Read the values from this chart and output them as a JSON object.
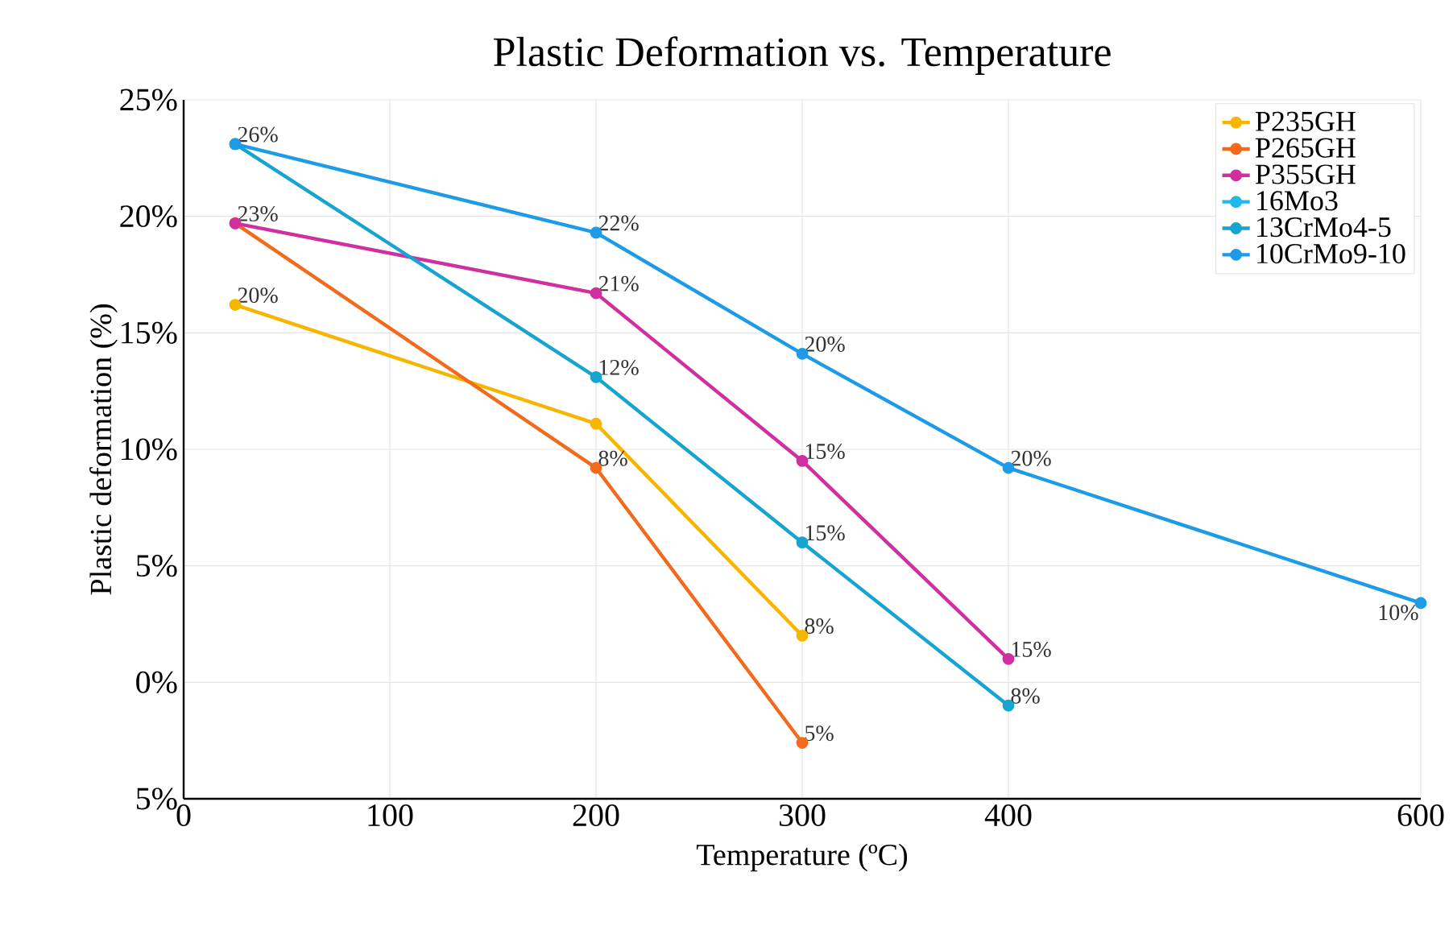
{
  "chart_data": {
    "type": "line",
    "title": "Plastic Deformation vs. Temperature",
    "xlabel": "Temperature (ºC)",
    "ylabel": "Plastic deformation (%)",
    "xlim": [
      0,
      600
    ],
    "ylim": [
      -5,
      25
    ],
    "xticks": [
      0,
      100,
      200,
      300,
      400,
      600
    ],
    "yticks": [
      {
        "value": -5,
        "label": "5%"
      },
      {
        "value": 0,
        "label": "0%"
      },
      {
        "value": 5,
        "label": "5%"
      },
      {
        "value": 10,
        "label": "10%"
      },
      {
        "value": 15,
        "label": "15%"
      },
      {
        "value": 20,
        "label": "20%"
      },
      {
        "value": 25,
        "label": "25%"
      }
    ],
    "grid": true,
    "legend": "top right",
    "marker": "circle",
    "line_style": "solid",
    "series": [
      {
        "name": "P235GH",
        "color": "#f7b500",
        "x": [
          25,
          200,
          300
        ],
        "values": [
          16.2,
          11.1,
          2.0
        ]
      },
      {
        "name": "P265GH",
        "color": "#f26b1d",
        "x": [
          25,
          200,
          300
        ],
        "values": [
          19.7,
          9.2,
          -2.6
        ]
      },
      {
        "name": "P355GH",
        "color": "#d02fa0",
        "x": [
          25,
          200,
          300,
          400
        ],
        "values": [
          19.7,
          16.7,
          9.5,
          1.0
        ]
      },
      {
        "name": "16Mo3",
        "color": "#22b8ea"
      },
      {
        "name": "13CrMo4-5",
        "color": "#18a4d0",
        "x": [
          25,
          200,
          300,
          400
        ],
        "values": [
          23.1,
          13.1,
          6.0,
          -1.0
        ]
      },
      {
        "name": "10CrMo9-10",
        "color": "#1e9be6",
        "x": [
          25,
          200,
          300,
          400,
          600
        ],
        "values": [
          23.1,
          19.3,
          14.1,
          9.2,
          3.4
        ]
      }
    ],
    "annotations": [
      {
        "text": "26%",
        "x": 25,
        "y": 23.1
      },
      {
        "text": "22%",
        "x": 200,
        "y": 19.3
      },
      {
        "text": "20%",
        "x": 300,
        "y": 14.1
      },
      {
        "text": "20%",
        "x": 400,
        "y": 9.2
      },
      {
        "text": "10%",
        "x": 600,
        "y": 3.4
      },
      {
        "text": "23%",
        "x": 25,
        "y": 19.7
      },
      {
        "text": "21%",
        "x": 200,
        "y": 16.7
      },
      {
        "text": "15%",
        "x": 300,
        "y": 9.5
      },
      {
        "text": "15%",
        "x": 400,
        "y": 1.0
      },
      {
        "text": "20%",
        "x": 25,
        "y": 16.2
      },
      {
        "text": "8%",
        "x": 300,
        "y": 2.0
      },
      {
        "text": "8%",
        "x": 200,
        "y": 9.2
      },
      {
        "text": "5%",
        "x": 300,
        "y": -2.6
      },
      {
        "text": "12%",
        "x": 200,
        "y": 13.1
      },
      {
        "text": "15%",
        "x": 300,
        "y": 6.0
      },
      {
        "text": "8%",
        "x": 400,
        "y": -1.0
      }
    ]
  }
}
